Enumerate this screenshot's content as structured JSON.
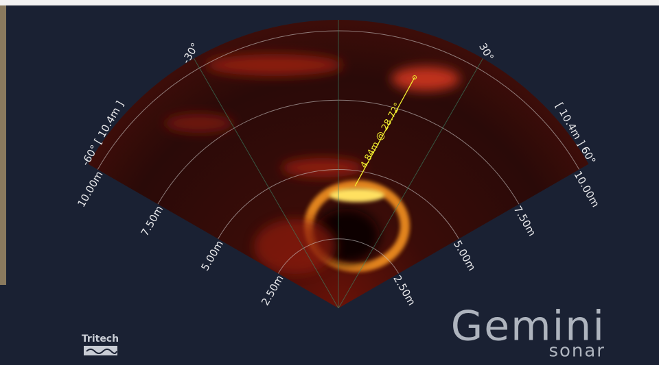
{
  "fan": {
    "angle_labels": [
      "-30°",
      "30°"
    ],
    "left_edge_label": "-60° [ 10.4m ]",
    "right_edge_label": "[ 10.4m ] 60°",
    "left_range_labels": [
      "2.50m",
      "5.00m",
      "7.50m",
      "10.00m"
    ],
    "right_range_labels": [
      "2.50m",
      "5.00m",
      "7.50m",
      "10.00m"
    ],
    "measurement": "4.84m @ 28.72°"
  },
  "branding": {
    "maker": "Tritech",
    "product": "Gemini",
    "subtitle": "sonar"
  }
}
